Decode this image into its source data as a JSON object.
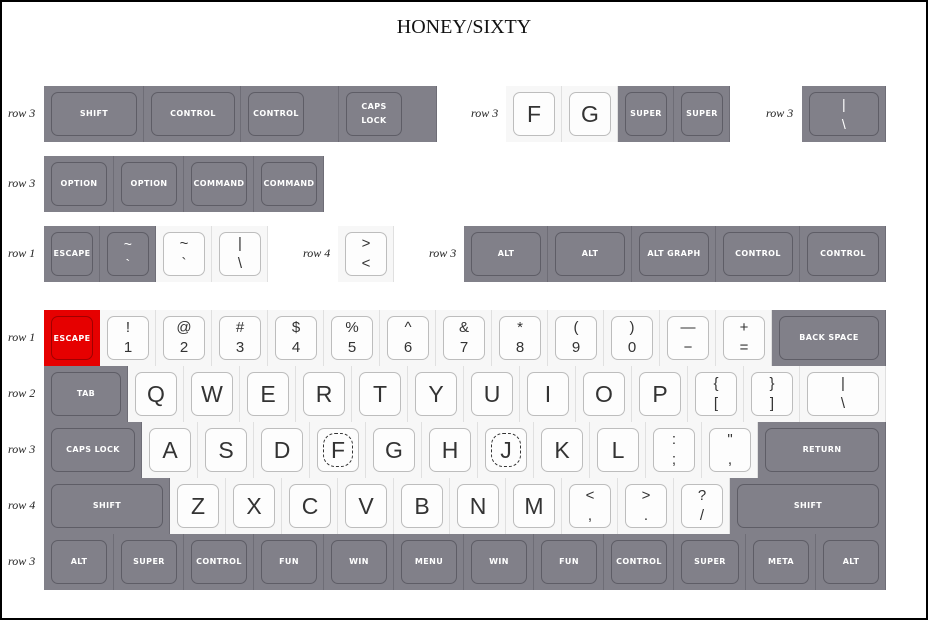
{
  "title": "HONEY/SIXTY",
  "colors": {
    "modifier": "#818089",
    "alpha": "#f7f7f7",
    "escape": "#e60000"
  },
  "groups": [
    {
      "row_label": "row 3",
      "keys": [
        {
          "label": "SHIFT",
          "style": "dark"
        },
        {
          "label": "CONTROL",
          "style": "dark"
        },
        {
          "label": "CONTROL",
          "style": "dark"
        },
        {
          "label": "CAPS\nLOCK",
          "style": "dark"
        }
      ]
    },
    {
      "row_label": "row 3",
      "keys": [
        {
          "label": "F",
          "style": "light"
        },
        {
          "label": "G",
          "style": "light"
        },
        {
          "label": "SUPER",
          "style": "dark"
        },
        {
          "label": "SUPER",
          "style": "dark"
        }
      ]
    },
    {
      "row_label": "row 3",
      "keys": [
        {
          "top": "|",
          "bottom": "\\",
          "style": "dark"
        }
      ]
    },
    {
      "row_label": "row 3",
      "keys": [
        {
          "label": "OPTION",
          "style": "dark"
        },
        {
          "label": "OPTION",
          "style": "dark"
        },
        {
          "label": "COMMAND",
          "style": "dark"
        },
        {
          "label": "COMMAND",
          "style": "dark"
        }
      ]
    },
    {
      "row_label": "row 1",
      "keys": [
        {
          "label": "ESCAPE",
          "style": "dark"
        },
        {
          "top": "~",
          "bottom": "`",
          "style": "dark"
        },
        {
          "top": "~",
          "bottom": "`",
          "style": "light"
        },
        {
          "top": "|",
          "bottom": "\\",
          "style": "light"
        }
      ]
    },
    {
      "row_label": "row 4",
      "keys": [
        {
          "top": ">",
          "bottom": "<",
          "style": "light"
        }
      ]
    },
    {
      "row_label": "row 3",
      "keys": [
        {
          "label": "ALT",
          "style": "dark"
        },
        {
          "label": "ALT",
          "style": "dark"
        },
        {
          "label": "ALT GRAPH",
          "style": "dark"
        },
        {
          "label": "CONTROL",
          "style": "dark"
        },
        {
          "label": "CONTROL",
          "style": "dark"
        }
      ]
    },
    {
      "row_label": "row 1",
      "keys": [
        {
          "label": "ESCAPE",
          "style": "red"
        },
        {
          "top": "!",
          "bottom": "1",
          "style": "light"
        },
        {
          "top": "@",
          "bottom": "2",
          "style": "light"
        },
        {
          "top": "#",
          "bottom": "3",
          "style": "light"
        },
        {
          "top": "$",
          "bottom": "4",
          "style": "light"
        },
        {
          "top": "%",
          "bottom": "5",
          "style": "light"
        },
        {
          "top": "^",
          "bottom": "6",
          "style": "light"
        },
        {
          "top": "&",
          "bottom": "7",
          "style": "light"
        },
        {
          "top": "*",
          "bottom": "8",
          "style": "light"
        },
        {
          "top": "(",
          "bottom": "9",
          "style": "light"
        },
        {
          "top": ")",
          "bottom": "0",
          "style": "light"
        },
        {
          "top": "—",
          "bottom": "−",
          "style": "light"
        },
        {
          "top": "+",
          "bottom": "=",
          "style": "light"
        },
        {
          "label": "BACK SPACE",
          "style": "dark"
        }
      ]
    },
    {
      "row_label": "row 2",
      "keys": [
        {
          "label": "TAB",
          "style": "dark"
        },
        {
          "label": "Q",
          "style": "light"
        },
        {
          "label": "W",
          "style": "light"
        },
        {
          "label": "E",
          "style": "light"
        },
        {
          "label": "R",
          "style": "light"
        },
        {
          "label": "T",
          "style": "light"
        },
        {
          "label": "Y",
          "style": "light"
        },
        {
          "label": "U",
          "style": "light"
        },
        {
          "label": "I",
          "style": "light"
        },
        {
          "label": "O",
          "style": "light"
        },
        {
          "label": "P",
          "style": "light"
        },
        {
          "top": "{",
          "bottom": "[",
          "style": "light"
        },
        {
          "top": "}",
          "bottom": "]",
          "style": "light"
        },
        {
          "top": "|",
          "bottom": "\\",
          "style": "light"
        }
      ]
    },
    {
      "row_label": "row 3",
      "keys": [
        {
          "label": "CAPS LOCK",
          "style": "dark"
        },
        {
          "label": "A",
          "style": "light"
        },
        {
          "label": "S",
          "style": "light"
        },
        {
          "label": "D",
          "style": "light"
        },
        {
          "label": "F",
          "style": "light",
          "homing": true
        },
        {
          "label": "G",
          "style": "light"
        },
        {
          "label": "H",
          "style": "light"
        },
        {
          "label": "J",
          "style": "light",
          "homing": true
        },
        {
          "label": "K",
          "style": "light"
        },
        {
          "label": "L",
          "style": "light"
        },
        {
          "top": ":",
          "bottom": ";",
          "style": "light"
        },
        {
          "top": "\"",
          "bottom": ",",
          "style": "light"
        },
        {
          "label": "RETURN",
          "style": "dark"
        }
      ]
    },
    {
      "row_label": "row 4",
      "keys": [
        {
          "label": "SHIFT",
          "style": "dark"
        },
        {
          "label": "Z",
          "style": "light"
        },
        {
          "label": "X",
          "style": "light"
        },
        {
          "label": "C",
          "style": "light"
        },
        {
          "label": "V",
          "style": "light"
        },
        {
          "label": "B",
          "style": "light"
        },
        {
          "label": "N",
          "style": "light"
        },
        {
          "label": "M",
          "style": "light"
        },
        {
          "top": "<",
          "bottom": ",",
          "style": "light"
        },
        {
          "top": ">",
          "bottom": ".",
          "style": "light"
        },
        {
          "top": "?",
          "bottom": "/",
          "style": "light"
        },
        {
          "label": "SHIFT",
          "style": "dark"
        }
      ]
    },
    {
      "row_label": "row 3",
      "keys": [
        {
          "label": "ALT",
          "style": "dark"
        },
        {
          "label": "SUPER",
          "style": "dark"
        },
        {
          "label": "CONTROL",
          "style": "dark"
        },
        {
          "label": "FUN",
          "style": "dark"
        },
        {
          "label": "WIN",
          "style": "dark"
        },
        {
          "label": "MENU",
          "style": "dark"
        },
        {
          "label": "WIN",
          "style": "dark"
        },
        {
          "label": "FUN",
          "style": "dark"
        },
        {
          "label": "CONTROL",
          "style": "dark"
        },
        {
          "label": "SUPER",
          "style": "dark"
        },
        {
          "label": "META",
          "style": "dark"
        },
        {
          "label": "ALT",
          "style": "dark"
        }
      ]
    }
  ]
}
